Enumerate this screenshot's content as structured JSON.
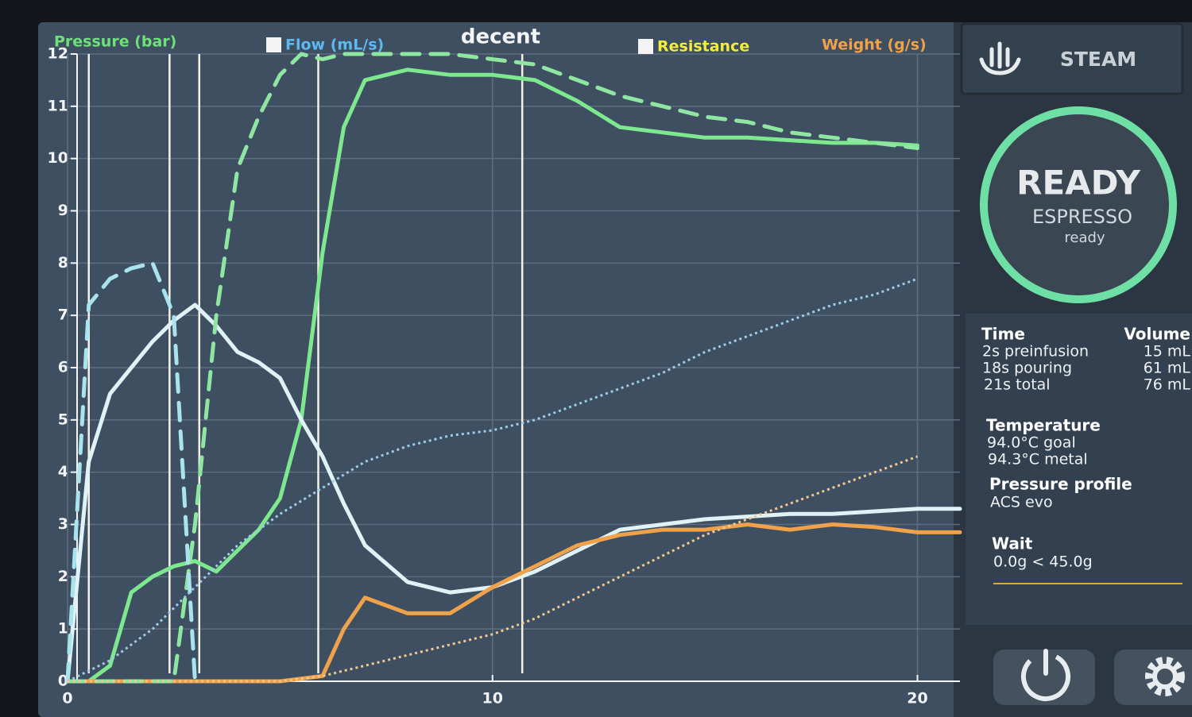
{
  "chart_data": {
    "type": "line",
    "logo": "decent",
    "x": [
      0,
      0.5,
      1,
      1.5,
      2,
      2.5,
      3,
      3.5,
      4,
      4.5,
      5,
      5.5,
      6,
      6.5,
      7,
      8,
      9,
      10,
      11,
      12,
      13,
      14,
      15,
      16,
      17,
      18,
      19,
      20,
      21
    ],
    "xlim": [
      0,
      21
    ],
    "xticks": [
      0,
      10,
      20
    ],
    "ylim": [
      0,
      12
    ],
    "yticks": [
      0,
      1,
      2,
      3,
      4,
      5,
      6,
      7,
      8,
      9,
      10,
      11,
      12
    ],
    "grid": true,
    "events": [
      0.5,
      2.4,
      3.1,
      5.9,
      10.7
    ],
    "resistance_label": "Resistance",
    "resistance_color": "#f2ee3a",
    "series": [
      {
        "name": "Pressure (bar)",
        "color": "#7ee88f",
        "legend_color": "#6fe07a",
        "values": [
          0,
          0,
          0.3,
          1.7,
          2.0,
          2.2,
          2.3,
          2.1,
          2.5,
          2.9,
          3.5,
          5.0,
          8.2,
          10.6,
          11.5,
          11.7,
          11.6,
          11.6,
          11.5,
          11.1,
          10.6,
          10.5,
          10.4,
          10.4,
          10.35,
          10.3,
          10.3,
          10.25,
          null
        ]
      },
      {
        "name": "Flow (mL/s)",
        "color": "#dff3f6",
        "legend_color": "#5fb8f0",
        "values": [
          0,
          4.2,
          5.5,
          6.0,
          6.5,
          6.9,
          7.2,
          6.8,
          6.3,
          6.1,
          5.8,
          5.0,
          4.3,
          3.4,
          2.6,
          1.9,
          1.7,
          1.8,
          2.1,
          2.5,
          2.9,
          3.0,
          3.1,
          3.15,
          3.2,
          3.2,
          3.25,
          3.3,
          3.3
        ]
      },
      {
        "name": "Weight (g/s)",
        "color": "#f0a24a",
        "legend_color": "#f0a24a",
        "values": [
          0,
          0,
          0,
          0,
          0,
          0,
          0,
          0,
          0,
          0,
          0,
          0.05,
          0.1,
          1.0,
          1.6,
          1.3,
          1.3,
          1.8,
          2.2,
          2.6,
          2.8,
          2.9,
          2.9,
          3.0,
          2.9,
          3.0,
          2.95,
          2.85,
          2.85
        ]
      },
      {
        "style": "dashed",
        "color": "#8fe6a0",
        "values": [
          0,
          0,
          0,
          0,
          0,
          0,
          3.0,
          7.0,
          9.8,
          10.8,
          11.6,
          12,
          11.9,
          12,
          12,
          12,
          12,
          11.9,
          11.8,
          11.5,
          11.2,
          11.0,
          10.8,
          10.7,
          10.5,
          10.4,
          10.3,
          10.2,
          null
        ]
      },
      {
        "style": "dashed",
        "color": "#a8e3ee",
        "values": [
          0,
          7.2,
          7.7,
          7.9,
          8.0,
          7.0,
          0,
          null,
          null,
          null,
          null,
          null,
          null,
          null,
          null,
          null,
          null,
          null,
          null,
          null,
          null,
          null,
          null,
          null,
          null,
          null,
          null,
          null,
          null
        ]
      },
      {
        "style": "dotted",
        "color": "#9ecbe8",
        "values": [
          0,
          0.2,
          0.4,
          0.7,
          1.0,
          1.4,
          1.8,
          2.2,
          2.6,
          2.9,
          3.2,
          3.45,
          3.7,
          3.95,
          4.2,
          4.5,
          4.7,
          4.8,
          5.0,
          5.3,
          5.6,
          5.9,
          6.3,
          6.6,
          6.9,
          7.2,
          7.4,
          7.7,
          null
        ]
      },
      {
        "style": "dotted",
        "color": "#f3c890",
        "values": [
          0,
          0,
          0,
          0,
          0,
          0,
          0,
          0,
          0,
          0,
          0,
          0.05,
          0.1,
          0.2,
          0.3,
          0.5,
          0.7,
          0.9,
          1.2,
          1.6,
          2.0,
          2.4,
          2.8,
          3.1,
          3.4,
          3.7,
          4.0,
          4.3,
          null
        ]
      }
    ]
  },
  "steam_button": {
    "label": "STEAM"
  },
  "status": {
    "title": "READY",
    "mode": "ESPRESSO",
    "state": "ready"
  },
  "info": {
    "time": {
      "heading": "Time",
      "lines": [
        "2s preinfusion",
        "18s pouring",
        "21s total"
      ]
    },
    "volume": {
      "heading": "Volume",
      "lines": [
        "15 mL",
        "61 mL",
        "76 mL"
      ]
    },
    "temperature": {
      "heading": "Temperature",
      "lines": [
        "94.0°C goal",
        "94.3°C metal"
      ]
    },
    "profile": {
      "heading": "Pressure profile",
      "lines": [
        "ACS evo"
      ]
    },
    "wait": {
      "heading": "Wait",
      "lines": [
        "0.0g < 45.0g"
      ]
    }
  }
}
